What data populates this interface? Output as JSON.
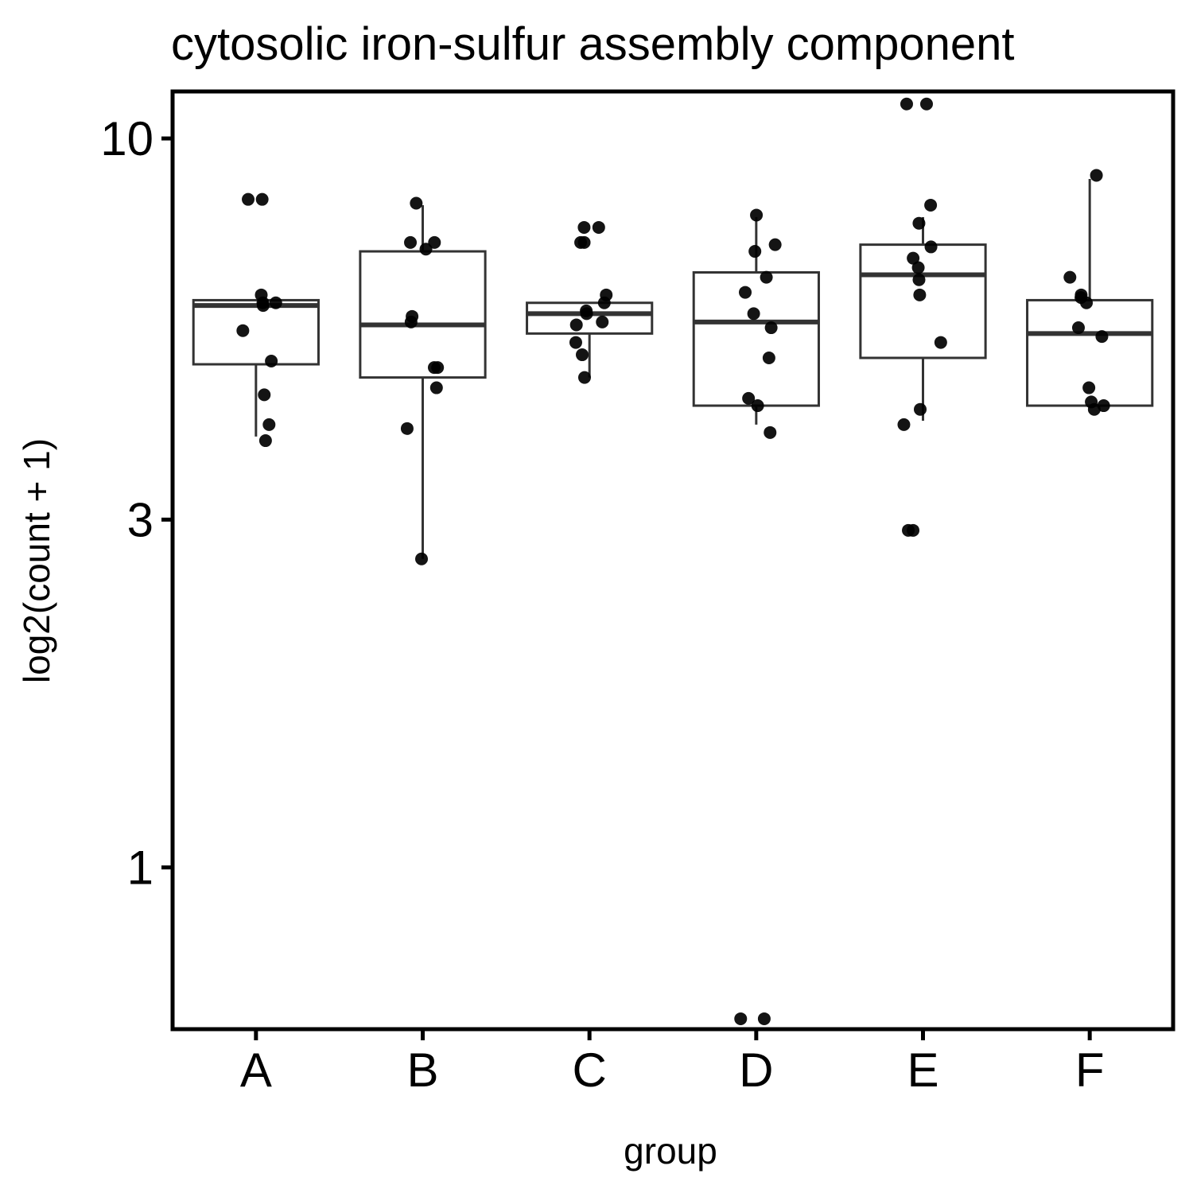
{
  "chart_data": {
    "type": "boxplot",
    "title": "cytosolic iron-sulfur assembly component",
    "xlabel": "group",
    "ylabel": "log2(count + 1)",
    "y_scale": "log",
    "ylim": [
      0.6,
      11.6
    ],
    "y_ticks": [
      1,
      3,
      10
    ],
    "y_tick_labels": [
      "1",
      "3",
      "10"
    ],
    "categories": [
      "A",
      "B",
      "C",
      "D",
      "E",
      "F"
    ],
    "grid": false,
    "legend": "none",
    "colors": {
      "box_line": "#333333",
      "point": "#000000",
      "frame": "#000000"
    },
    "boxes": [
      {
        "group": "A",
        "lower_whisker": 3.9,
        "q1": 4.9,
        "median": 5.9,
        "q3": 6.0,
        "upper_whisker": 6.0
      },
      {
        "group": "B",
        "lower_whisker": 2.65,
        "q1": 4.7,
        "median": 5.55,
        "q3": 7.0,
        "upper_whisker": 8.1
      },
      {
        "group": "C",
        "lower_whisker": 4.7,
        "q1": 5.4,
        "median": 5.75,
        "q3": 5.95,
        "upper_whisker": 5.95
      },
      {
        "group": "D",
        "lower_whisker": 4.05,
        "q1": 4.3,
        "median": 5.6,
        "q3": 6.55,
        "upper_whisker": 7.8
      },
      {
        "group": "E",
        "lower_whisker": 4.1,
        "q1": 5.0,
        "median": 6.5,
        "q3": 7.15,
        "upper_whisker": 7.8
      },
      {
        "group": "F",
        "lower_whisker": 4.3,
        "q1": 4.3,
        "median": 5.4,
        "q3": 6.0,
        "upper_whisker": 8.8
      }
    ],
    "points": [
      {
        "group": "A",
        "values": [
          8.25,
          8.25,
          6.1,
          5.95,
          5.9,
          5.95,
          5.45,
          4.95,
          4.45,
          4.05,
          3.85
        ]
      },
      {
        "group": "B",
        "values": [
          8.15,
          7.2,
          7.2,
          7.05,
          5.7,
          5.6,
          4.85,
          4.85,
          4.55,
          4.0,
          2.65
        ]
      },
      {
        "group": "C",
        "values": [
          7.55,
          7.55,
          7.2,
          7.2,
          6.1,
          5.95,
          5.8,
          5.75,
          5.6,
          5.55,
          5.25,
          5.05,
          4.7
        ]
      },
      {
        "group": "D",
        "values": [
          7.85,
          7.15,
          7.0,
          6.45,
          6.15,
          5.75,
          5.5,
          5.0,
          4.4,
          4.3,
          3.95,
          0.62,
          0.62
        ]
      },
      {
        "group": "E",
        "values": [
          11.15,
          11.15,
          8.1,
          7.65,
          7.1,
          6.85,
          6.65,
          6.4,
          6.1,
          5.25,
          4.25,
          4.05,
          2.9,
          2.9
        ]
      },
      {
        "group": "F",
        "values": [
          8.9,
          6.45,
          6.1,
          6.05,
          5.95,
          5.5,
          5.35,
          4.55,
          4.35,
          4.3,
          4.25
        ]
      }
    ]
  }
}
